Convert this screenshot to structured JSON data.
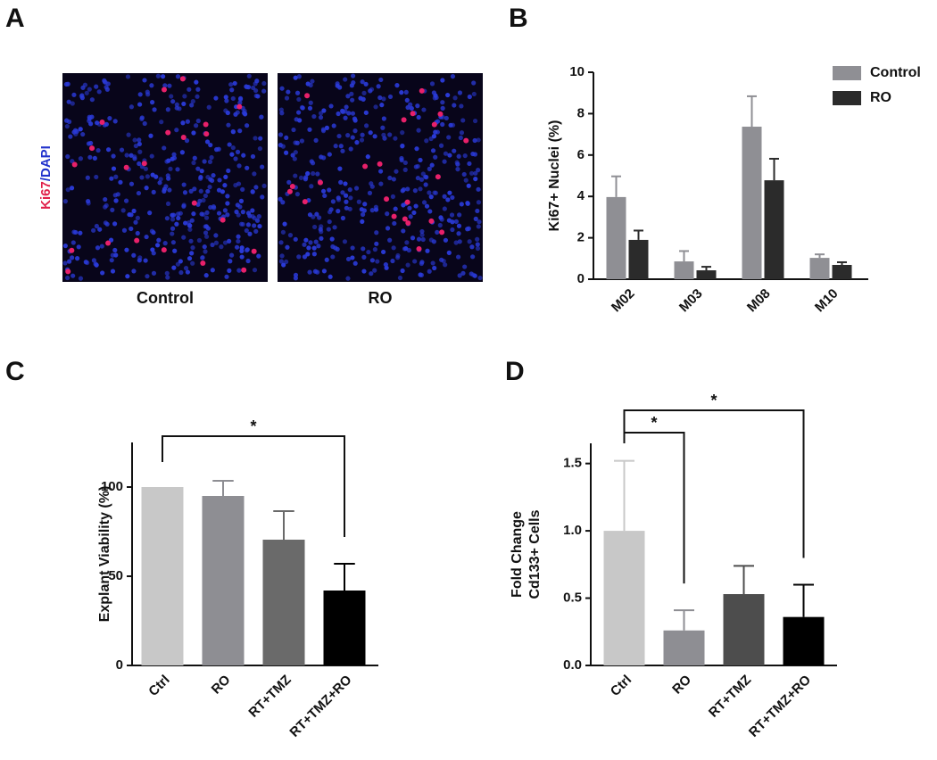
{
  "panels": [
    "A",
    "B",
    "C",
    "D"
  ],
  "panel_a": {
    "stain_label": [
      "Ki67",
      "/DAPI"
    ],
    "images": [
      "Control",
      "RO"
    ]
  },
  "chart_data": [
    {
      "type": "bar",
      "ylabel": "Ki67+ Nuclei (%)",
      "categories": [
        "M02",
        "M03",
        "M08",
        "M10"
      ],
      "series": [
        {
          "name": "Control",
          "color": "#8f8f94",
          "values": [
            3.97,
            0.86,
            7.37,
            1.03
          ],
          "errors": [
            1.0,
            0.5,
            1.47,
            0.17
          ]
        },
        {
          "name": "RO",
          "color": "#2b2b2b",
          "values": [
            1.9,
            0.43,
            4.78,
            0.69
          ],
          "errors": [
            0.45,
            0.17,
            1.04,
            0.13
          ]
        }
      ],
      "ylim": [
        0,
        10
      ],
      "yticks": [
        0,
        2,
        4,
        6,
        8,
        10
      ],
      "legend": "upper right"
    },
    {
      "type": "bar",
      "ylabel": "Explant Viability (%)",
      "categories": [
        "Ctrl",
        "RO",
        "RT+TMZ",
        "RT+TMZ+RO"
      ],
      "values": [
        100,
        95,
        70.5,
        42
      ],
      "errors": [
        null,
        8.5,
        16,
        15
      ],
      "colors": [
        "#c8c8c8",
        "#8e8e93",
        "#6a6a6a",
        "#000000"
      ],
      "ylim": [
        0,
        125
      ],
      "yticks": [
        0,
        50,
        100
      ],
      "annotations": [
        {
          "text": "*",
          "between": [
            "Ctrl",
            "RT+TMZ+RO"
          ]
        }
      ]
    },
    {
      "type": "bar",
      "ylabel": [
        "Fold Change",
        "Cd133+ Cells"
      ],
      "categories": [
        "Ctrl",
        "RO",
        "RT+TMZ",
        "RT+TMZ+RO"
      ],
      "values": [
        1.0,
        0.26,
        0.53,
        0.36
      ],
      "errors": [
        0.52,
        0.15,
        0.21,
        0.24
      ],
      "colors": [
        "#c8c8c8",
        "#8e8e93",
        "#4d4d4d",
        "#000000"
      ],
      "ylim": [
        0,
        1.65
      ],
      "yticks": [
        {
          "value": 0,
          "label": "0.0"
        },
        0.5,
        {
          "value": 1,
          "label": "1.0"
        },
        1.5
      ],
      "annotations": [
        {
          "text": "*",
          "between": [
            "Ctrl",
            "RO"
          ]
        },
        {
          "text": "*",
          "between": [
            "Ctrl",
            "RT+TMZ+RO"
          ]
        }
      ]
    }
  ]
}
